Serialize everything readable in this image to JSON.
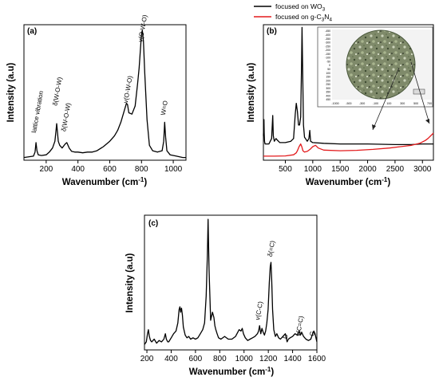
{
  "legend": {
    "entries": [
      {
        "id": "wo3",
        "label_prefix": "focused on WO",
        "label_sub": "3",
        "color": "#000000"
      },
      {
        "id": "gcn",
        "label_prefix": "focused on g-C",
        "label_sub": "3",
        "label_mid": "N",
        "label_sub2": "4",
        "color": "#e31a1c"
      }
    ]
  },
  "inset": {
    "x_ticks": [
      "-1000",
      "-500",
      "-300",
      "-100",
      "100",
      "300",
      "500",
      "700"
    ],
    "y_ticks": [
      "-450",
      "-400",
      "-350",
      "-300",
      "-250",
      "-200",
      "-150",
      "-100",
      "-50",
      "0",
      "50",
      "100",
      "150",
      "200",
      "250",
      "300",
      "350",
      "400",
      "450"
    ]
  },
  "chart_data": [
    {
      "panel": "(a)",
      "type": "line",
      "xlabel": "Wavenumber",
      "xlabel_unit": "(cm",
      "xlabel_sup": "-1",
      "xlabel_close": ")",
      "ylabel": "Intensity (a.u)",
      "xlim": [
        60,
        1080
      ],
      "ylim": [
        0,
        100
      ],
      "x_ticks": [
        200,
        400,
        600,
        800,
        1000
      ],
      "annotations": [
        {
          "text": "lattice vibration",
          "x": 135,
          "y": 20
        },
        {
          "text": "δ(W-O-W)",
          "x": 268,
          "y": 40
        },
        {
          "text": "δ(W-O-W)",
          "x": 322,
          "y": 21
        },
        {
          "text": "v(O-W-O)",
          "x": 712,
          "y": 42
        },
        {
          "text": "v(O-W-O)",
          "x": 805,
          "y": 87
        },
        {
          "text": "W=O",
          "x": 948,
          "y": 33
        }
      ],
      "series": [
        {
          "color": "#000000",
          "x": [
            60,
            120,
            130,
            136,
            142,
            150,
            170,
            200,
            220,
            240,
            255,
            262,
            266,
            270,
            276,
            285,
            300,
            320,
            330,
            345,
            360,
            380,
            400,
            430,
            460,
            490,
            520,
            560,
            600,
            630,
            650,
            670,
            690,
            705,
            712,
            720,
            740,
            760,
            775,
            785,
            795,
            800,
            805,
            812,
            820,
            835,
            850,
            870,
            900,
            930,
            940,
            946,
            952,
            960,
            980,
            1020,
            1060,
            1080
          ],
          "y": [
            2,
            3,
            6,
            13,
            7,
            4,
            3.5,
            4,
            6,
            9,
            14,
            22,
            27,
            22,
            14,
            11,
            9,
            12,
            13,
            9,
            6.5,
            6,
            6,
            5.5,
            6,
            6,
            7,
            10,
            14,
            18,
            22,
            28,
            36,
            42,
            41,
            35,
            34,
            40,
            56,
            68,
            85,
            93,
            96,
            88,
            65,
            30,
            11,
            7,
            6,
            7,
            14,
            28,
            17,
            7,
            4,
            3,
            2,
            2
          ]
        }
      ]
    },
    {
      "panel": "(b)",
      "type": "line",
      "xlabel": "Wavenumber",
      "xlabel_unit": "(cm",
      "xlabel_sup": "-1",
      "xlabel_close": ")",
      "ylabel": "Intensity (a.u)",
      "xlim": [
        100,
        3200
      ],
      "ylim": [
        0,
        100
      ],
      "x_ticks": [
        500,
        1000,
        1500,
        2000,
        2500,
        3000
      ],
      "series": [
        {
          "name": "focused on WO3",
          "color": "#000000",
          "x": [
            100,
            110,
            115,
            120,
            130,
            200,
            250,
            270,
            280,
            300,
            330,
            350,
            400,
            500,
            600,
            650,
            680,
            700,
            720,
            740,
            760,
            780,
            795,
            805,
            815,
            830,
            850,
            900,
            930,
            945,
            960,
            1000,
            1200,
            1500,
            2000,
            2500,
            2800,
            3000,
            3200
          ],
          "y": [
            18,
            30,
            20,
            14,
            12,
            12,
            16,
            33,
            18,
            14,
            16,
            15,
            13,
            13,
            14,
            16,
            34,
            42,
            36,
            26,
            26,
            32,
            70,
            98,
            70,
            26,
            17,
            14,
            16,
            22,
            14,
            13,
            12.5,
            12,
            12,
            11.5,
            11.5,
            12,
            12
          ]
        },
        {
          "name": "focused on g-C3N4",
          "color": "#e31a1c",
          "x": [
            100,
            300,
            500,
            650,
            700,
            720,
            750,
            780,
            800,
            820,
            850,
            900,
            950,
            1000,
            1050,
            1100,
            1200,
            1500,
            1800,
            2100,
            2400,
            2600,
            2800,
            2950,
            3050,
            3100,
            3150,
            3200
          ],
          "y": [
            3,
            3,
            3.2,
            4,
            5.5,
            7,
            10,
            12,
            10,
            7,
            6,
            6.5,
            8,
            10,
            11,
            9,
            7.5,
            7,
            7.3,
            8,
            9,
            10,
            11,
            12.5,
            14.5,
            16,
            18,
            20
          ]
        }
      ]
    },
    {
      "panel": "(c)",
      "type": "line",
      "xlabel": "Wavenumber",
      "xlabel_unit": "(cm",
      "xlabel_sup": "-1",
      "xlabel_close": ")",
      "ylabel": "Intensity (a.u)",
      "xlim": [
        180,
        1600
      ],
      "ylim": [
        0,
        100
      ],
      "x_ticks": [
        200,
        400,
        600,
        800,
        1000,
        1200,
        1400,
        1600
      ],
      "annotations": [
        {
          "text": "v(C-C)",
          "x": 1127,
          "y": 22
        },
        {
          "text": "δ(=C)",
          "x": 1230,
          "y": 69
        },
        {
          "text": "D",
          "x": 1355,
          "y": 8
        },
        {
          "text": "v(C=C)",
          "x": 1460,
          "y": 10
        },
        {
          "text": "G",
          "x": 1575,
          "y": 10
        }
      ],
      "series": [
        {
          "color": "#000000",
          "x": [
            180,
            195,
            205,
            212,
            220,
            230,
            240,
            260,
            280,
            300,
            320,
            340,
            352,
            360,
            372,
            380,
            400,
            420,
            440,
            455,
            465,
            472,
            478,
            485,
            492,
            500,
            515,
            530,
            545,
            560,
            580,
            600,
            620,
            640,
            660,
            675,
            688,
            698,
            704,
            712,
            725,
            740,
            752,
            760,
            768,
            778,
            790,
            810,
            840,
            870,
            900,
            930,
            960,
            975,
            985,
            995,
            1010,
            1030,
            1050,
            1070,
            1090,
            1110,
            1120,
            1128,
            1138,
            1148,
            1158,
            1168,
            1178,
            1188,
            1198,
            1208,
            1216,
            1222,
            1228,
            1235,
            1245,
            1258,
            1270,
            1285,
            1300,
            1320,
            1340,
            1355,
            1365,
            1380,
            1400,
            1420,
            1440,
            1455,
            1465,
            1475,
            1490,
            1510,
            1530,
            1550,
            1565,
            1575,
            1585,
            1595,
            1600
          ],
          "y": [
            4,
            6,
            12,
            15,
            10,
            7,
            6,
            8,
            5,
            7,
            6,
            8,
            12,
            8,
            6,
            6,
            9,
            12,
            14,
            20,
            30,
            32,
            28,
            31,
            26,
            17,
            11,
            9,
            10,
            8,
            9,
            8,
            9,
            12,
            15,
            20,
            40,
            70,
            97,
            60,
            22,
            28,
            24,
            18,
            15,
            12,
            9,
            8,
            10,
            8,
            8,
            10,
            15,
            14,
            16,
            12,
            9,
            7,
            8,
            9,
            10,
            12,
            14,
            18,
            12,
            16,
            13,
            11,
            14,
            20,
            30,
            50,
            62,
            65,
            52,
            30,
            15,
            10,
            12,
            9,
            8,
            10,
            12,
            6,
            8,
            9,
            10,
            12,
            11,
            14,
            11,
            13,
            10,
            8,
            7,
            8,
            12,
            14,
            12,
            8,
            6
          ]
        }
      ]
    }
  ]
}
